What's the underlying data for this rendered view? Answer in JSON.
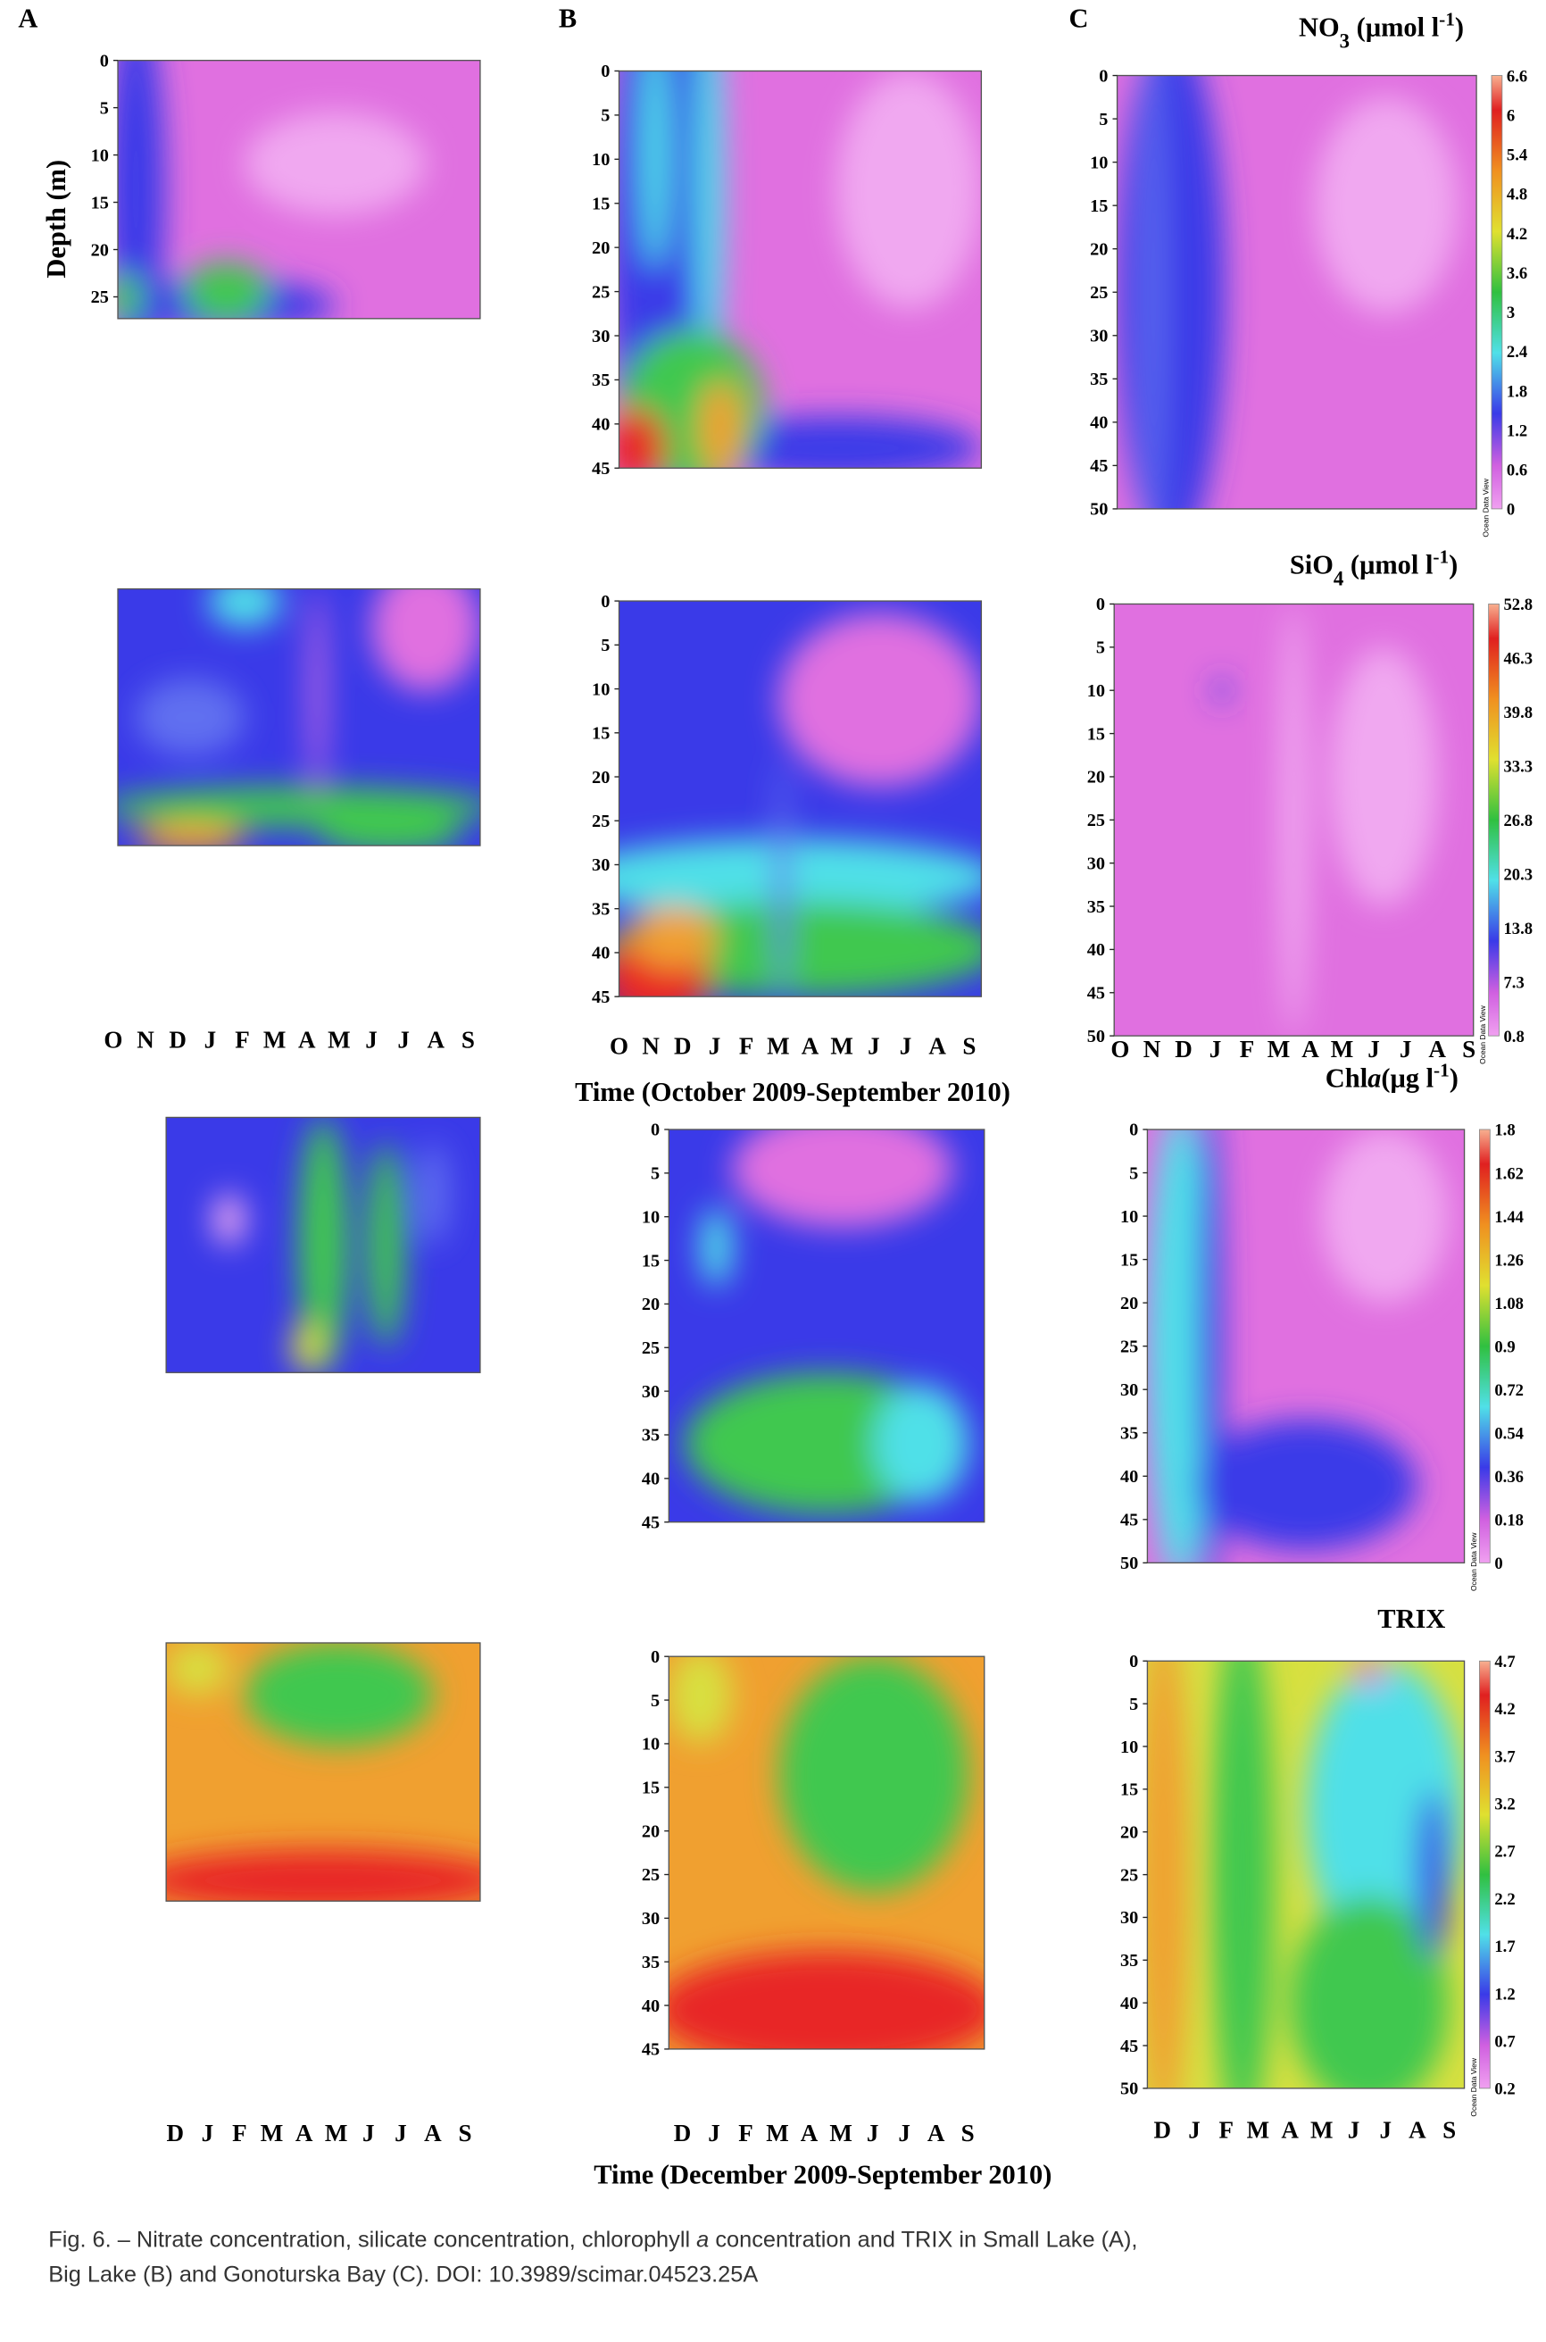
{
  "panel_labels": [
    "A",
    "B",
    "C"
  ],
  "depth_axis_label": "Depth (m)",
  "depth_ticks": [
    [
      "0",
      "5",
      "10",
      "15",
      "20",
      "25"
    ],
    [
      "0",
      "5",
      "10",
      "15",
      "20",
      "25",
      "30",
      "35",
      "40",
      "45"
    ],
    [
      "0",
      "5",
      "10",
      "15",
      "20",
      "25",
      "30",
      "35",
      "40",
      "45",
      "50"
    ],
    [
      "0",
      "5",
      "10",
      "15",
      "20",
      "25",
      "30",
      "35",
      "40",
      "45"
    ],
    [
      "0",
      "5",
      "10",
      "15",
      "20",
      "25",
      "30",
      "35",
      "40",
      "45",
      "50"
    ],
    [
      "0",
      "5",
      "10",
      "15",
      "20",
      "25",
      "30",
      "35",
      "40",
      "45"
    ],
    [
      "0",
      "5",
      "10",
      "15",
      "20",
      "25",
      "30",
      "35",
      "40",
      "45",
      "50"
    ],
    [
      "0",
      "5",
      "10",
      "15",
      "20",
      "25",
      "30",
      "35",
      "40",
      "45"
    ],
    [
      "0",
      "5",
      "10",
      "15",
      "20",
      "25",
      "30",
      "35",
      "40",
      "45",
      "50"
    ]
  ],
  "colorbars": [
    {
      "title": [
        {
          "t": "NO"
        },
        {
          "t": "3",
          "style": "sub"
        },
        {
          "t": " (μmol l"
        },
        {
          "t": "-1",
          "style": "sup"
        },
        {
          "t": ")"
        }
      ],
      "ticks": [
        "6.6",
        "6",
        "5.4",
        "4.8",
        "4.2",
        "3.6",
        "3",
        "2.4",
        "1.8",
        "1.2",
        "0.6",
        "0"
      ],
      "watermark": "Ocean Data View"
    },
    {
      "title": [
        {
          "t": "SiO"
        },
        {
          "t": "4",
          "style": "sub"
        },
        {
          "t": " (μmol l"
        },
        {
          "t": "-1",
          "style": "sup"
        },
        {
          "t": ")"
        }
      ],
      "ticks": [
        "52.8",
        "46.3",
        "39.8",
        "33.3",
        "26.8",
        "20.3",
        "13.8",
        "7.3",
        "0.8"
      ],
      "watermark": "Ocean Data View"
    },
    {
      "title": [
        {
          "t": "Chl"
        },
        {
          "t": "a",
          "style": "italic"
        },
        {
          "t": "(μg l"
        },
        {
          "t": "-1",
          "style": "sup"
        },
        {
          "t": ")"
        }
      ],
      "ticks": [
        "1.8",
        "1.62",
        "1.44",
        "1.26",
        "1.08",
        "0.9",
        "0.72",
        "0.54",
        "0.36",
        "0.18",
        "0"
      ],
      "watermark": "Ocean Data View"
    },
    {
      "title": [
        {
          "t": "TRIX"
        }
      ],
      "ticks": [
        "4.7",
        "4.2",
        "3.7",
        "3.2",
        "2.7",
        "2.2",
        "1.7",
        "1.2",
        "0.7",
        "0.2"
      ],
      "watermark": "Ocean Data View"
    }
  ],
  "month_axes": [
    [
      "O",
      "N",
      "D",
      "J",
      "F",
      "M",
      "A",
      "M",
      "J",
      "J",
      "A",
      "S"
    ],
    [
      "O",
      "N",
      "D",
      "J",
      "F",
      "M",
      "A",
      "M",
      "J",
      "J",
      "A",
      "S"
    ],
    [
      "O",
      "N",
      "D",
      "J",
      "F",
      "M",
      "A",
      "M",
      "J",
      "J",
      "A",
      "S"
    ],
    [
      "D",
      "J",
      "F",
      "M",
      "A",
      "M",
      "J",
      "J",
      "A",
      "S"
    ],
    [
      "D",
      "J",
      "F",
      "M",
      "A",
      "M",
      "J",
      "J",
      "A",
      "S"
    ],
    [
      "D",
      "J",
      "F",
      "M",
      "A",
      "M",
      "J",
      "J",
      "A",
      "S"
    ]
  ],
  "time_labels": [
    "Time (October 2009-September 2010)",
    "Time (December 2009-September 2010)"
  ],
  "caption": [
    [
      {
        "t": "Fig. 6. – Nitrate concentration, silicate concentration, chlorophyll "
      },
      {
        "t": "a",
        "style": "italic"
      },
      {
        "t": " concentration and TRIX in Small Lake (A),"
      }
    ],
    [
      {
        "t": "Big Lake (B) and Gonoturska Bay (C). DOI: 10.3989/scimar.04523.25A"
      }
    ]
  ]
}
